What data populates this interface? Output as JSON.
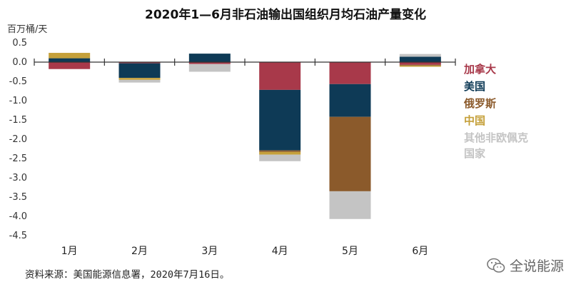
{
  "chart_data": {
    "type": "bar",
    "stacked": true,
    "title": "2020年1—6月非石油输出国组织月均石油产量变化",
    "ylabel": "百万桶/天",
    "categories": [
      "1月",
      "2月",
      "3月",
      "4月",
      "5月",
      "6月"
    ],
    "ylim": [
      -4.5,
      0.5
    ],
    "yticks": [
      "0.5",
      "0.0",
      "-0.5",
      "-1.0",
      "-1.5",
      "-2.0",
      "-2.5",
      "-3.0",
      "-3.5",
      "-4.0",
      "-4.5"
    ],
    "grid": false,
    "legend_position": "right",
    "series": [
      {
        "name": "加拿大",
        "color": "#a8394a",
        "values": [
          -0.18,
          -0.03,
          -0.05,
          -0.72,
          -0.57,
          -0.07
        ]
      },
      {
        "name": "美国",
        "color": "#0e3a56",
        "values": [
          0.1,
          -0.38,
          0.22,
          -1.57,
          -0.85,
          0.14
        ]
      },
      {
        "name": "俄罗斯",
        "color": "#8b5a2b",
        "values": [
          0.0,
          0.0,
          0.0,
          -0.04,
          -1.93,
          -0.02
        ]
      },
      {
        "name": "中国",
        "color": "#c5a03a",
        "values": [
          0.14,
          -0.05,
          0.0,
          -0.07,
          0.0,
          -0.03
        ]
      },
      {
        "name": "其他非欧佩克\n国家",
        "color": "#c4c4c4",
        "values": [
          0.0,
          -0.07,
          -0.2,
          -0.17,
          -0.72,
          0.07
        ]
      }
    ]
  },
  "source_text": "资料来源：美国能源信息署，2020年7月16日。",
  "watermark_text": "全说能源"
}
